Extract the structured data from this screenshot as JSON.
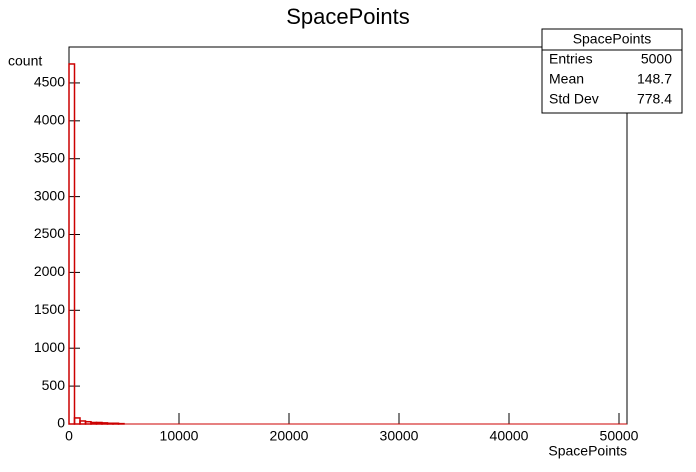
{
  "chart_data": {
    "type": "histogram",
    "title": "SpacePoints",
    "x_label": "SpacePoints",
    "y_label": "count",
    "bins": [
      0,
      500,
      1000,
      1500,
      2000,
      2500,
      3000,
      3500,
      4000,
      4500,
      5000
    ],
    "values": [
      4750,
      80,
      40,
      30,
      20,
      20,
      15,
      10,
      10,
      5
    ],
    "color": "#cc0000",
    "xlim": [
      0,
      50727
    ],
    "xticks": [
      0,
      10000,
      20000,
      30000,
      40000,
      50000
    ],
    "ylim": [
      0,
      4974
    ],
    "yticks": [
      0,
      500,
      1000,
      1500,
      2000,
      2500,
      3000,
      3500,
      4000,
      4500
    ],
    "stats": {
      "title": "SpacePoints",
      "rows": [
        [
          "Entries",
          5000
        ],
        [
          "Mean",
          148.7
        ],
        [
          "Std Dev",
          778.4
        ]
      ]
    }
  }
}
